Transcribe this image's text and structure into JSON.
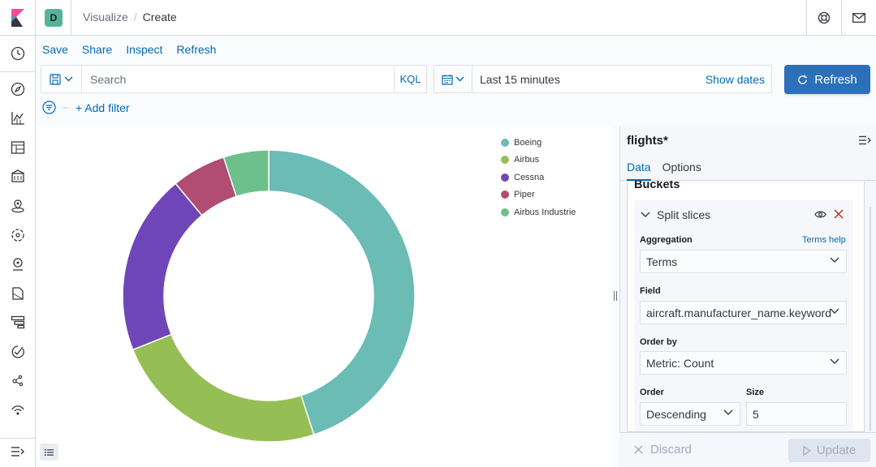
{
  "header": {
    "space_initial": "D",
    "breadcrumbs": [
      "Visualize",
      "Create"
    ],
    "separator": "/"
  },
  "menu": {
    "items": [
      "Save",
      "Share",
      "Inspect",
      "Refresh"
    ]
  },
  "query": {
    "placeholder": "Search",
    "language": "KQL"
  },
  "timepicker": {
    "range": "Last 15 minutes",
    "show_dates": "Show dates",
    "refresh_label": "Refresh"
  },
  "filters": {
    "add_filter": "+ Add filter"
  },
  "chart_data": {
    "type": "pie",
    "donut": true,
    "title": "",
    "legend_position": "top-right",
    "categories": [
      "Boeing",
      "Airbus",
      "Cessna",
      "Piper",
      "Airbus Industrie"
    ],
    "values": [
      45,
      24,
      20,
      6,
      5
    ],
    "colors": [
      "#6bbcb5",
      "#95bf54",
      "#6f46b8",
      "#b14c72",
      "#6dbf8b"
    ]
  },
  "editor": {
    "index_pattern": "flights*",
    "tabs": [
      "Data",
      "Options"
    ],
    "buckets_title": "Buckets",
    "bucket": {
      "title": "Split slices",
      "aggregation_label": "Aggregation",
      "aggregation_help": "Terms help",
      "aggregation_value": "Terms",
      "field_label": "Field",
      "field_value": "aircraft.manufacturer_name.keyword",
      "order_by_label": "Order by",
      "order_by_value": "Metric: Count",
      "order_label": "Order",
      "order_value": "Descending",
      "size_label": "Size",
      "size_value": "5"
    },
    "discard_label": "Discard",
    "update_label": "Update"
  },
  "colors": {
    "link": "#006bb4",
    "primary_button": "#2b70b8"
  }
}
